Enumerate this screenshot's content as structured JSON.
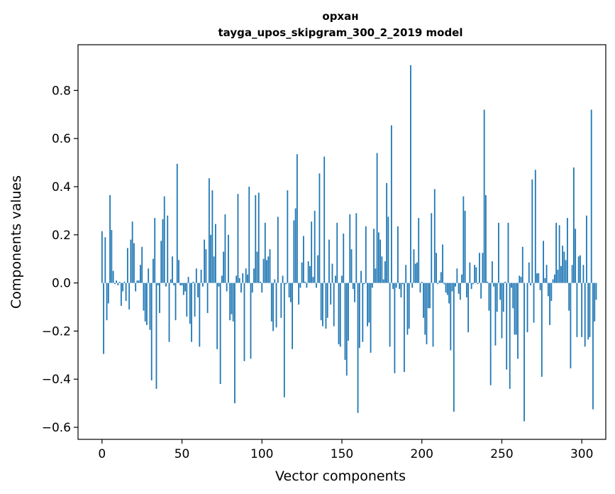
{
  "chart_data": {
    "type": "bar",
    "title": "орхан",
    "subtitle": "tayga_upos_skipgram_300_2_2019 model",
    "xlabel": "Vector components",
    "ylabel": "Components values",
    "xlim": [
      -15,
      315
    ],
    "ylim": [
      -0.65,
      0.99
    ],
    "xticks": [
      0,
      50,
      100,
      150,
      200,
      250,
      300
    ],
    "yticks": [
      -0.6,
      -0.4,
      -0.2,
      0.0,
      0.2,
      0.4,
      0.6,
      0.8
    ],
    "ytick_labels": [
      "−0.6",
      "−0.4",
      "−0.2",
      "0.0",
      "0.2",
      "0.4",
      "0.6",
      "0.8"
    ],
    "bar_color": "#1f77b4",
    "grid": false,
    "values": [
      0.215,
      -0.295,
      0.19,
      -0.155,
      -0.085,
      0.365,
      0.22,
      0.05,
      -0.005,
      0.01,
      -0.01,
      0.005,
      -0.095,
      -0.035,
      0.005,
      -0.075,
      0.145,
      -0.11,
      0.18,
      0.255,
      0.165,
      -0.035,
      0.01,
      0.01,
      0.075,
      0.15,
      -0.115,
      -0.16,
      -0.175,
      0.06,
      -0.195,
      -0.405,
      0.1,
      0.27,
      -0.44,
      -0.01,
      -0.125,
      0.175,
      0.265,
      0.36,
      -0.015,
      0.28,
      -0.245,
      0.015,
      0.11,
      -0.01,
      -0.155,
      0.495,
      0.095,
      -0.01,
      -0.01,
      -0.05,
      -0.035,
      -0.14,
      0.025,
      -0.17,
      -0.245,
      0.005,
      -0.14,
      0.06,
      -0.06,
      -0.265,
      0.055,
      -0.015,
      0.18,
      0.14,
      -0.125,
      0.435,
      0.2,
      0.385,
      0.11,
      0.245,
      -0.275,
      -0.015,
      -0.42,
      0.03,
      0.13,
      0.285,
      -0.035,
      0.2,
      -0.155,
      -0.13,
      -0.16,
      -0.5,
      0.03,
      0.37,
      0.02,
      -0.04,
      0.04,
      -0.325,
      0.06,
      0.035,
      0.4,
      -0.315,
      -0.04,
      0.06,
      0.365,
      0.13,
      0.375,
      0.005,
      -0.04,
      0.1,
      0.25,
      0.095,
      0.11,
      0.14,
      -0.16,
      -0.2,
      0.015,
      -0.185,
      0.275,
      0.0,
      -0.145,
      0.03,
      -0.475,
      -0.005,
      0.385,
      -0.06,
      -0.08,
      -0.275,
      0.26,
      0.31,
      0.535,
      -0.09,
      -0.02,
      0.085,
      0.195,
      0.005,
      -0.02,
      0.09,
      0.07,
      0.255,
      0.025,
      0.3,
      -0.02,
      0.115,
      0.455,
      -0.155,
      -0.18,
      0.525,
      -0.19,
      -0.145,
      0.18,
      -0.09,
      0.08,
      -0.18,
      0.03,
      0.25,
      -0.255,
      -0.265,
      0.03,
      0.205,
      -0.32,
      -0.385,
      -0.24,
      0.285,
      0.14,
      -0.025,
      -0.08,
      0.29,
      -0.54,
      -0.27,
      0.05,
      -0.245,
      -0.005,
      0.235,
      -0.18,
      -0.165,
      -0.29,
      -0.02,
      0.225,
      0.06,
      0.54,
      0.21,
      0.18,
      0.11,
      0.015,
      0.09,
      0.415,
      0.275,
      -0.265,
      0.655,
      -0.025,
      -0.375,
      -0.02,
      0.235,
      -0.025,
      -0.06,
      -0.005,
      -0.37,
      0.075,
      -0.215,
      -0.19,
      0.905,
      -0.02,
      0.14,
      0.08,
      0.085,
      0.27,
      -0.04,
      0.005,
      -0.145,
      -0.215,
      -0.255,
      -0.105,
      -0.105,
      0.29,
      -0.265,
      0.39,
      0.125,
      -0.005,
      0.01,
      0.045,
      0.16,
      -0.005,
      -0.04,
      -0.05,
      -0.085,
      -0.28,
      -0.035,
      -0.535,
      -0.015,
      0.06,
      -0.045,
      -0.07,
      0.035,
      0.36,
      0.3,
      -0.06,
      -0.205,
      0.085,
      -0.025,
      -0.005,
      0.075,
      0.065,
      -0.005,
      0.125,
      -0.065,
      0.125,
      0.72,
      0.365,
      0.005,
      -0.115,
      -0.425,
      0.09,
      -0.015,
      -0.26,
      -0.12,
      0.25,
      -0.07,
      -0.23,
      -0.12,
      0.005,
      -0.36,
      0.25,
      -0.44,
      -0.02,
      -0.105,
      -0.215,
      -0.215,
      -0.315,
      0.03,
      0.025,
      0.15,
      -0.575,
      0.0,
      -0.205,
      0.085,
      -0.01,
      0.43,
      -0.165,
      0.47,
      0.04,
      0.04,
      -0.03,
      -0.39,
      0.175,
      0.02,
      0.075,
      -0.055,
      -0.175,
      -0.075,
      0.015,
      0.035,
      0.25,
      0.055,
      0.24,
      0.07,
      0.155,
      0.13,
      0.095,
      0.27,
      -0.115,
      -0.355,
      0.075,
      0.48,
      0.225,
      -0.225,
      0.11,
      0.115,
      -0.225,
      0.075,
      -0.265,
      0.28,
      -0.235,
      -0.225,
      0.72,
      -0.525,
      -0.16,
      -0.07
    ]
  }
}
